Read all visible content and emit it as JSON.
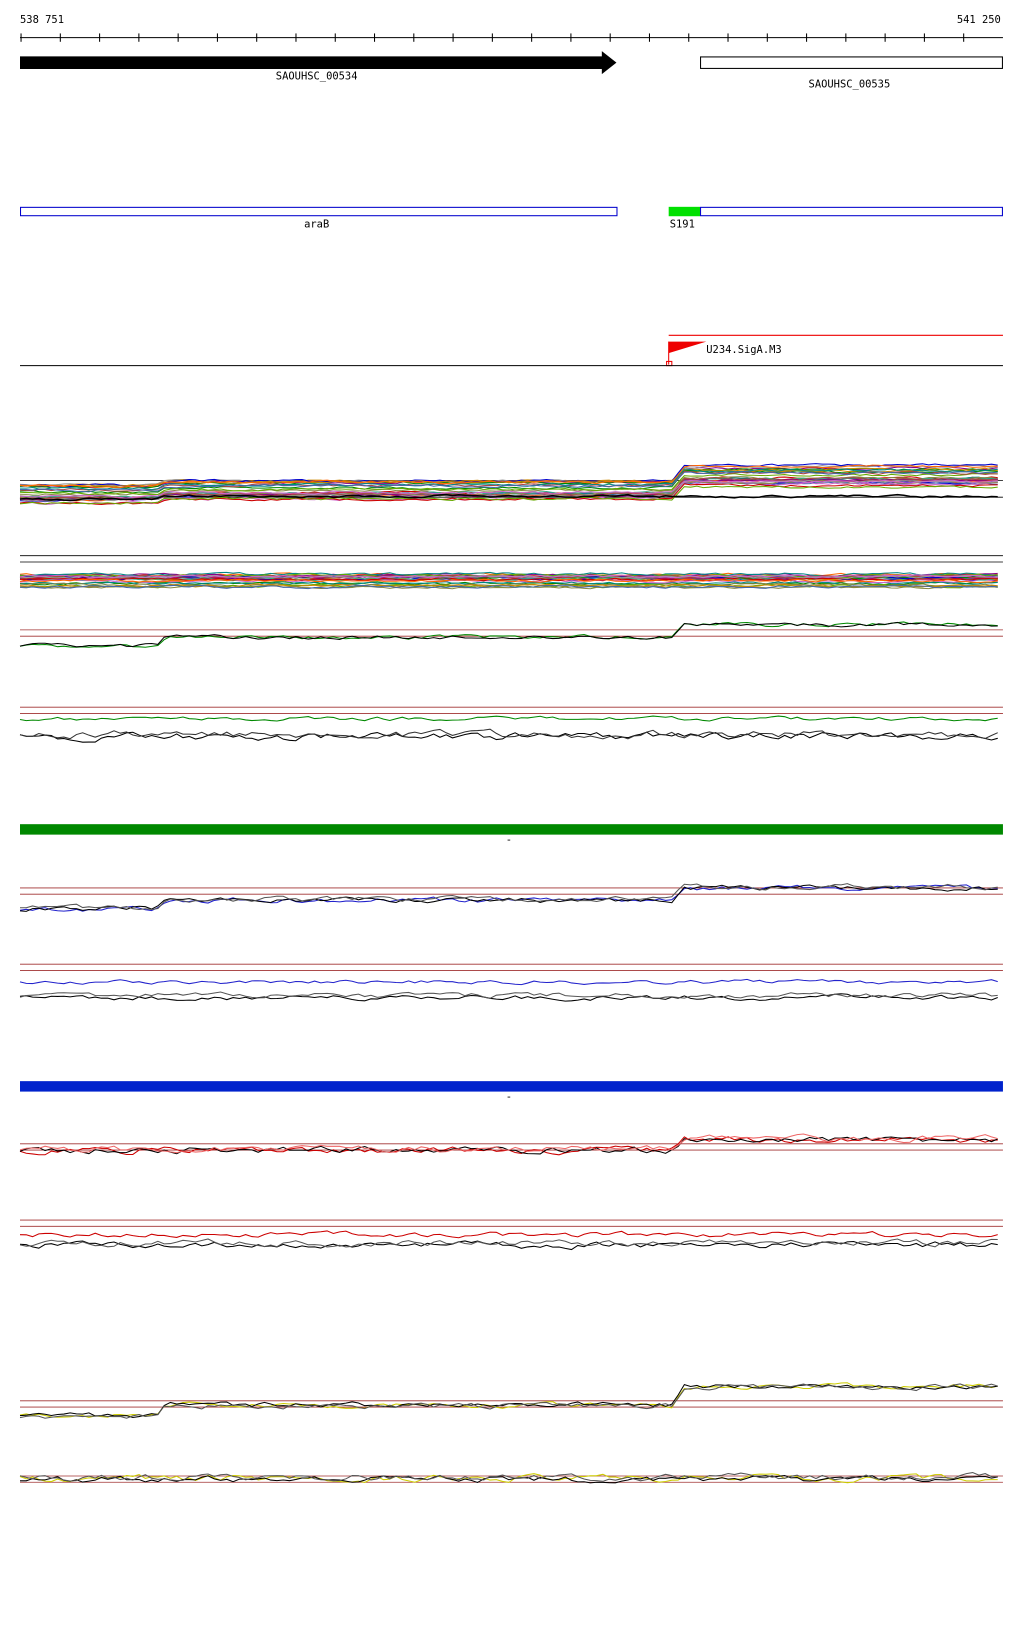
{
  "ruler": {
    "start": "538 751",
    "end": "541 250"
  },
  "genes": [
    {
      "label": "SAOUHSC_00534"
    },
    {
      "label": "SAOUHSC_00535"
    }
  ],
  "features": [
    {
      "label": "araB"
    },
    {
      "label": "S191"
    }
  ],
  "promoter": {
    "label": "U234.SigA.M3"
  },
  "tracks": [
    {
      "label": "-"
    },
    {
      "label": "-"
    }
  ]
}
